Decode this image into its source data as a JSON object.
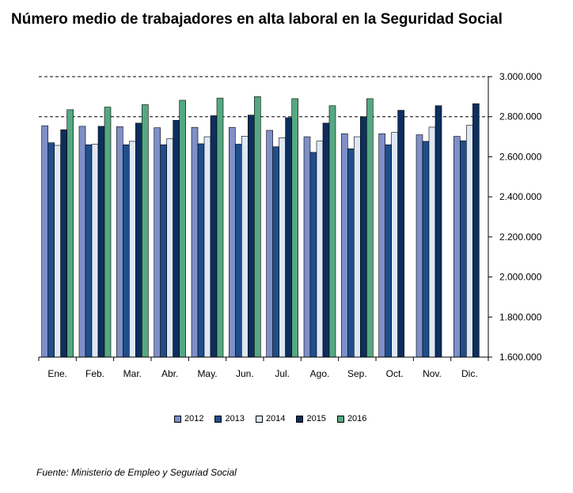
{
  "title": "Número medio de trabajadores en alta laboral en la Seguridad Social",
  "source": "Fuente: Ministerio de Empleo y Seguriad Social",
  "colors": {
    "2012": "#7f8fc8",
    "2013": "#1f4e8c",
    "2014": "#dde8f6",
    "2015": "#0d2f5e",
    "2016": "#55a882"
  },
  "chart_data": {
    "type": "bar",
    "title": "Número medio de trabajadores en alta laboral en la Seguridad Social",
    "categories": [
      "Ene.",
      "Feb.",
      "Mar.",
      "Abr.",
      "May.",
      "Jun.",
      "Jul.",
      "Ago.",
      "Sep.",
      "Oct.",
      "Nov.",
      "Dic."
    ],
    "series": [
      {
        "name": "2012",
        "values": [
          2755000,
          2752000,
          2750000,
          2745000,
          2747000,
          2747000,
          2732000,
          2700000,
          2715000,
          2715000,
          2710000,
          2702000
        ]
      },
      {
        "name": "2013",
        "values": [
          2670000,
          2660000,
          2660000,
          2660000,
          2665000,
          2663000,
          2650000,
          2622000,
          2640000,
          2660000,
          2677000,
          2680000
        ]
      },
      {
        "name": "2014",
        "values": [
          2657000,
          2663000,
          2677000,
          2690000,
          2700000,
          2703000,
          2695000,
          2678000,
          2700000,
          2722000,
          2748000,
          2757000
        ]
      },
      {
        "name": "2015",
        "values": [
          2735000,
          2752000,
          2768000,
          2782000,
          2805000,
          2808000,
          2795000,
          2768000,
          2800000,
          2832000,
          2855000,
          2865000
        ]
      },
      {
        "name": "2016",
        "values": [
          2835000,
          2848000,
          2860000,
          2882000,
          2893000,
          2900000,
          2890000,
          2855000,
          2890000,
          null,
          null,
          null
        ]
      }
    ],
    "yticks": [
      "3.000.000",
      "2.800.000",
      "2.600.000",
      "2.400.000",
      "2.200.000",
      "2.000.000",
      "1.800.000",
      "1.600.000"
    ],
    "ylim": [
      1600000,
      3000000
    ],
    "gridlines": [
      2800000,
      3000000
    ],
    "legend_position": "bottom"
  }
}
